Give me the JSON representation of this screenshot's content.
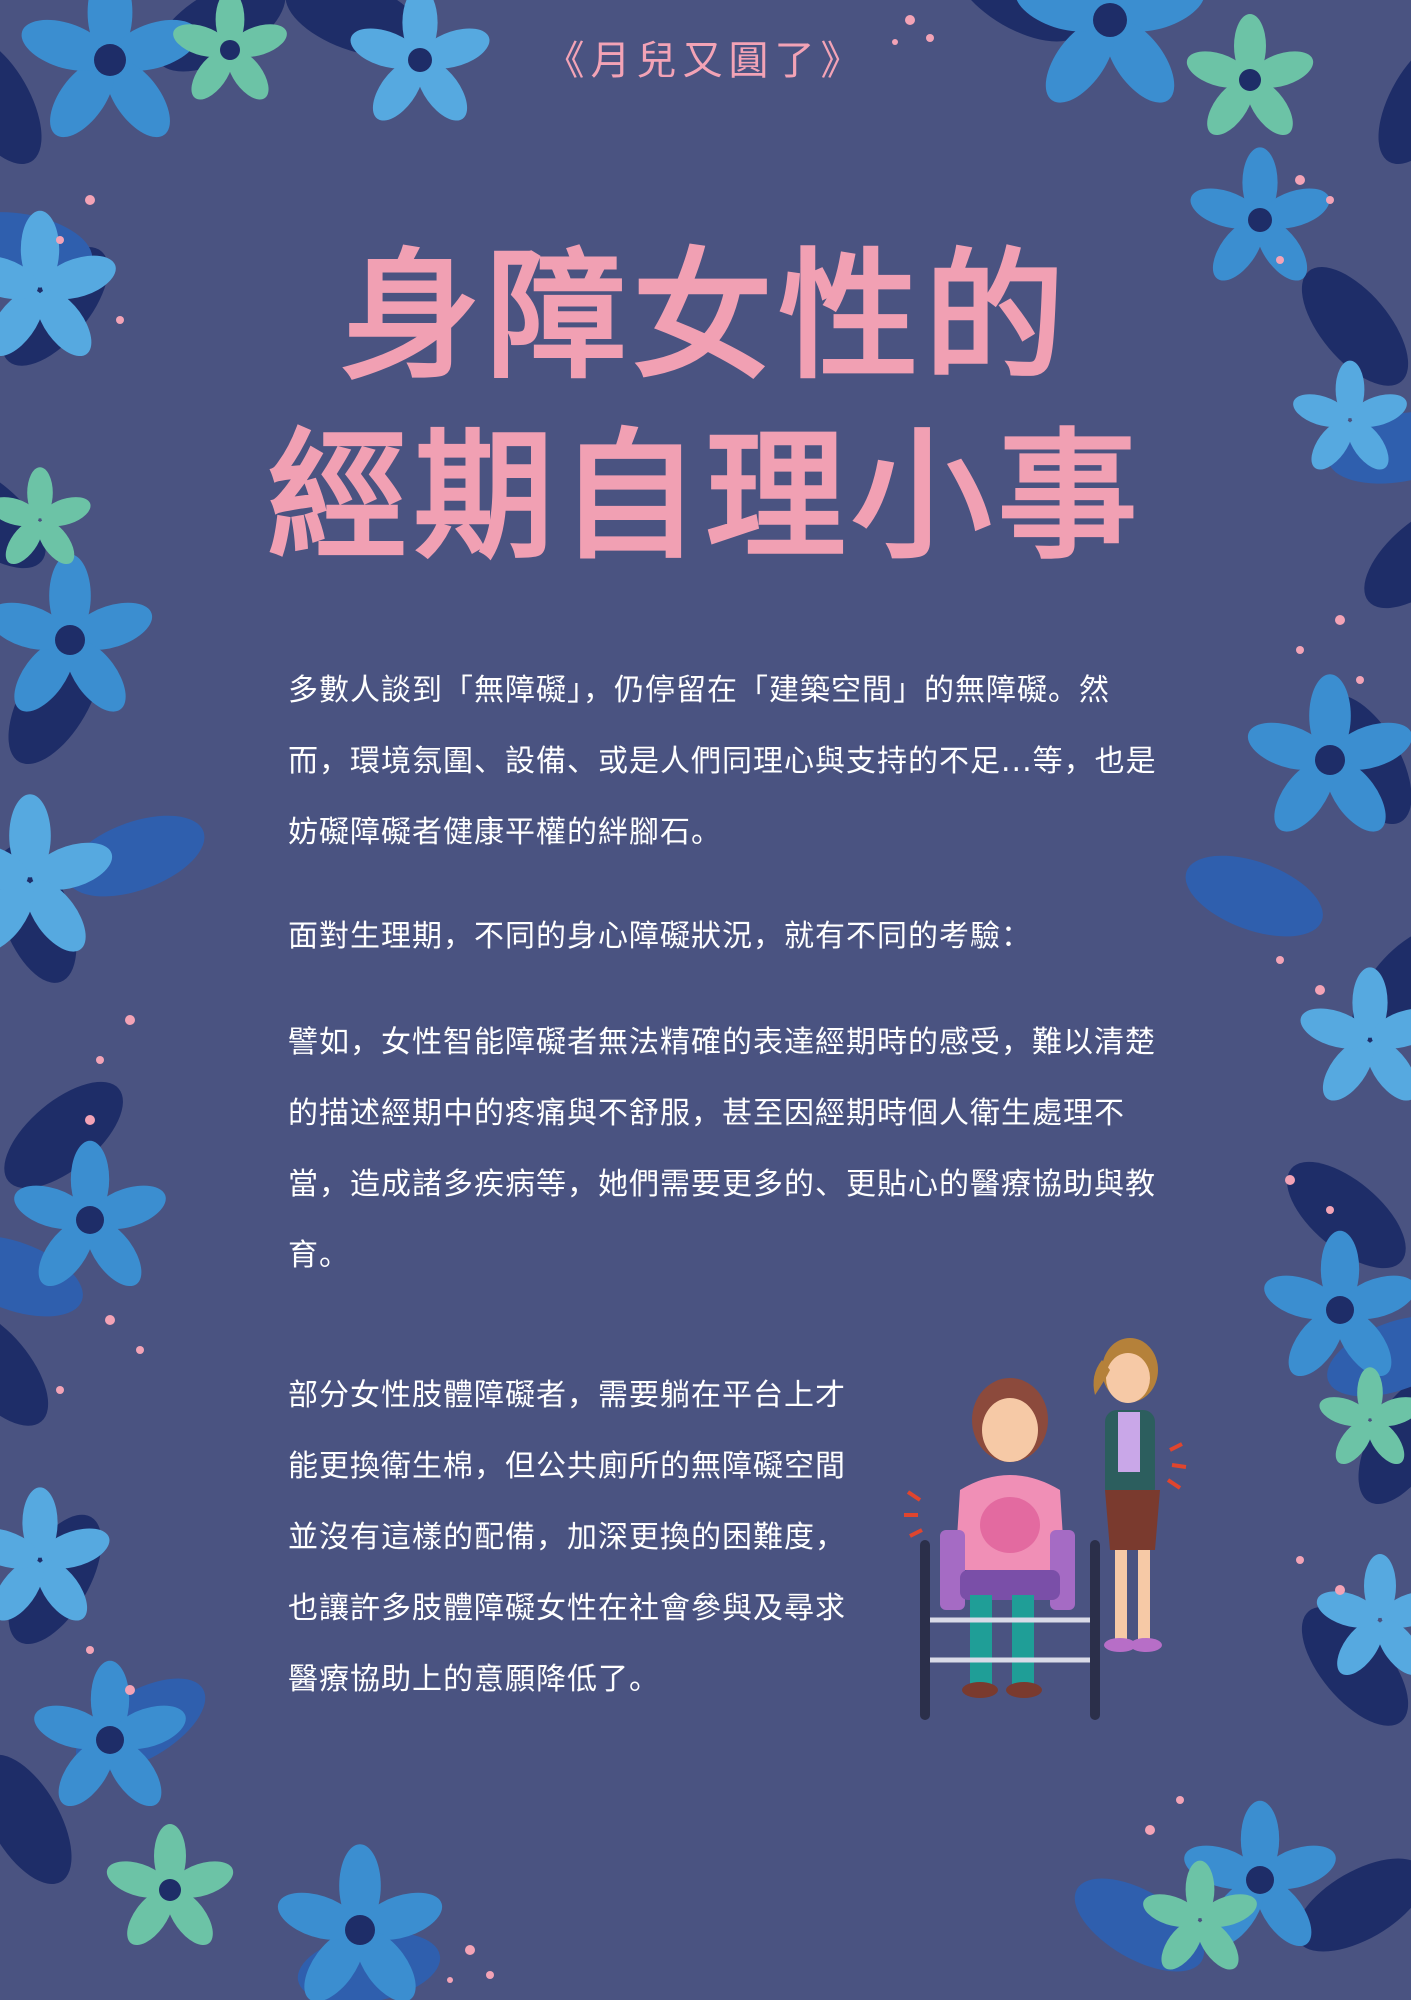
{
  "series_label": "《月兒又圓了》",
  "title": {
    "line1": "身障女性的",
    "line2": "經期自理小事"
  },
  "paragraphs": {
    "p1": "多數人談到「無障礙」，仍停留在「建築空間」的無障礙。然而，環境氛圍、設備、或是人們同理心與支持的不足...等，也是妨礙障礙者健康平權的絆腳石。",
    "p2": "面對生理期，不同的身心障礙狀況，就有不同的考驗：",
    "p3": "譬如，女性智能障礙者無法精確的表達經期時的感受，難以清楚的描述經期中的疼痛與不舒服，甚至因經期時個人衛生處理不當，造成諸多疾病等，她們需要更多的、更貼心的醫療協助與教育。",
    "p4": "部分女性肢體障礙者，需要躺在平台上才能更換衛生棉，但公共廁所的無障礙空間並沒有這樣的配備，加深更換的困難度，也讓許多肢體障礙女性在社會參與及尋求醫療協助上的意願降低了。"
  },
  "colors": {
    "background": "#4a5381",
    "title_pink": "#f1a0b3",
    "text": "#ffffff",
    "flower_navy": "#1e2d68",
    "flower_blue": "#2f5fae",
    "flower_sky": "#3b8ed0",
    "flower_light": "#56a9e0",
    "flower_mint": "#6cc3a6"
  },
  "icons": [
    "flower-border",
    "woman-wheelchair-illustration",
    "woman-standing-cramp-illustration"
  ]
}
